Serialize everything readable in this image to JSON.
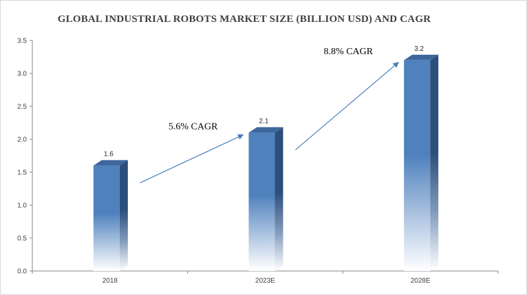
{
  "chart_data": {
    "type": "bar",
    "title": "GLOBAL INDUSTRIAL ROBOTS MARKET SIZE (BILLION USD) AND CAGR",
    "categories": [
      "2018",
      "2023E",
      "2028E"
    ],
    "values": [
      1.6,
      2.1,
      3.2
    ],
    "data_labels": [
      "1.6",
      "2.1",
      "3.2"
    ],
    "ylim": [
      0,
      3.5
    ],
    "y_ticks": [
      "0.0",
      "0.5",
      "1.0",
      "1.5",
      "2.0",
      "2.5",
      "3.0",
      "3.5"
    ],
    "grid": false,
    "annotations": [
      {
        "text": "5.6% CAGR",
        "from": "2018",
        "to": "2023E"
      },
      {
        "text": "8.8% CAGR",
        "from": "2023E",
        "to": "2028E"
      }
    ],
    "colors": {
      "bar_front": "#4f81bd",
      "bar_side": "#2c4e7a",
      "bar_top": "#3d669c",
      "arrow": "#4a7ebb",
      "axis": "#868686"
    }
  }
}
